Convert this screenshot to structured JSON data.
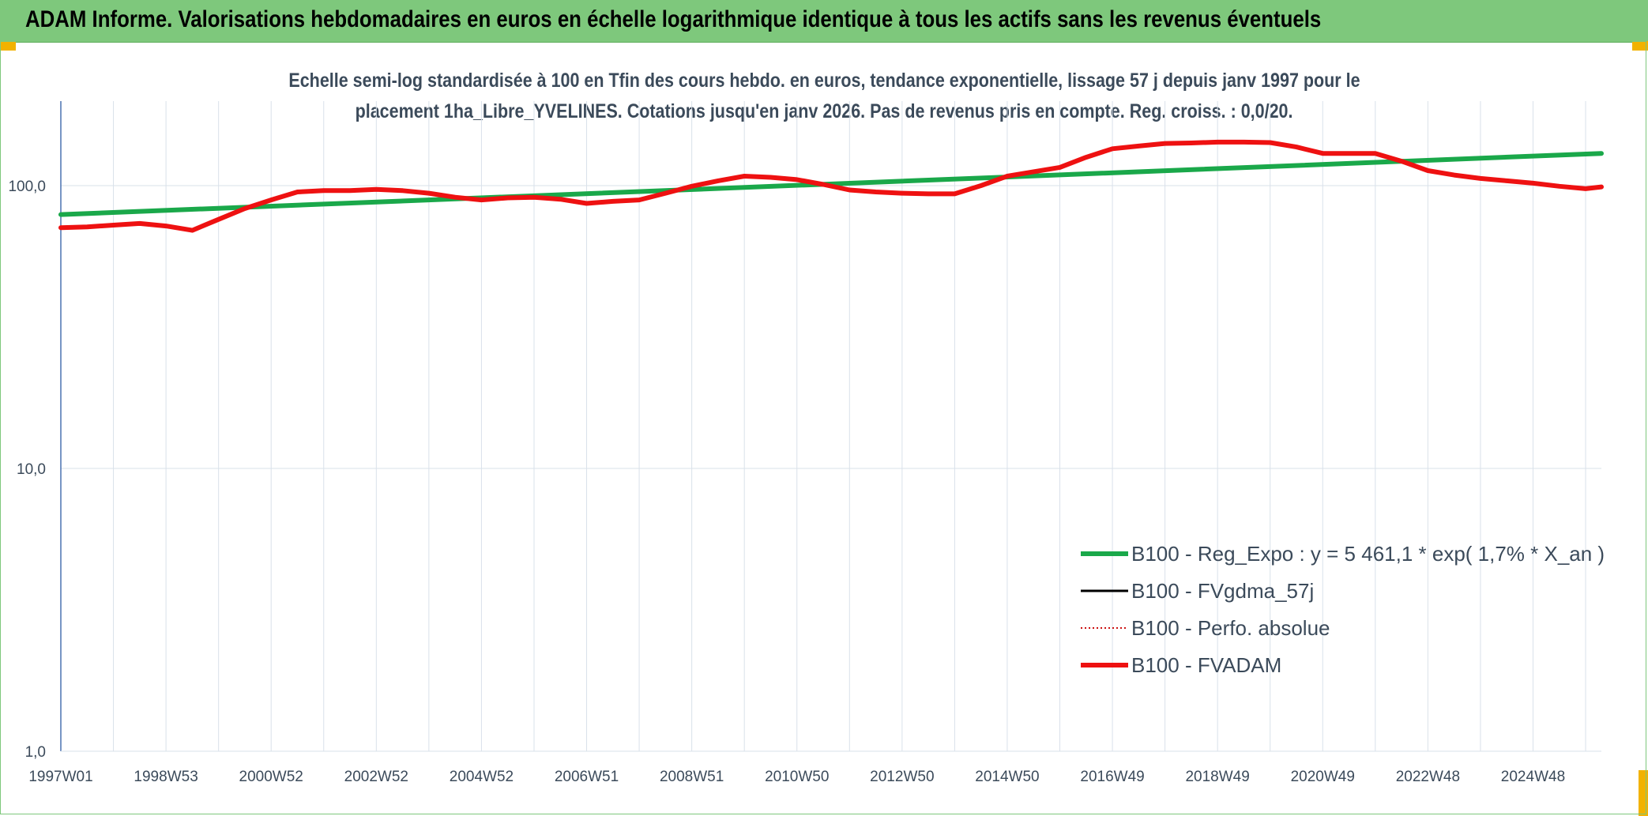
{
  "header": {
    "title": "ADAM Informe. Valorisations hebdomadaires en euros en échelle logarithmique identique à tous les actifs sans les revenus éventuels"
  },
  "colors": {
    "banner": "#7ec87c",
    "trend": "#1aa84a",
    "fvadam": "#ee1111",
    "fvgdma": "#000000",
    "perfo": "#cc1111"
  },
  "chart_data": {
    "type": "line",
    "title_lines": [
      "Echelle semi-log standardisée à 100 en Tfin des cours hebdo. en euros, tendance exponentielle, lissage 57 j depuis janv 1997 pour le",
      "placement 1ha_Libre_YVELINES. Cotations jusqu'en janv 2026. Pas de revenus pris en compte. Reg. croiss. : 0,0/20."
    ],
    "y_scale": "log",
    "ylim": [
      1,
      190
    ],
    "y_ticks": [
      {
        "value": 1,
        "label": "1,0"
      },
      {
        "value": 10,
        "label": "10,0"
      },
      {
        "value": 100,
        "label": "100,0"
      }
    ],
    "xlim": [
      1997.0,
      2026.3
    ],
    "x_ticks": [
      {
        "value": 1997.0,
        "label": "1997W01"
      },
      {
        "value": 1999.0,
        "label": "1998W53"
      },
      {
        "value": 2001.0,
        "label": "2000W52"
      },
      {
        "value": 2003.0,
        "label": "2002W52"
      },
      {
        "value": 2005.0,
        "label": "2004W52"
      },
      {
        "value": 2007.0,
        "label": "2006W51"
      },
      {
        "value": 2009.0,
        "label": "2008W51"
      },
      {
        "value": 2011.0,
        "label": "2010W50"
      },
      {
        "value": 2013.0,
        "label": "2012W50"
      },
      {
        "value": 2015.0,
        "label": "2014W50"
      },
      {
        "value": 2017.0,
        "label": "2016W49"
      },
      {
        "value": 2019.0,
        "label": "2018W49"
      },
      {
        "value": 2021.0,
        "label": "2020W49"
      },
      {
        "value": 2023.0,
        "label": "2022W48"
      },
      {
        "value": 2025.0,
        "label": "2024W48"
      }
    ],
    "grid": true,
    "legend_position": "bottom-right",
    "series": [
      {
        "name": "B100 - Reg_Expo : y = 5 461,1 * exp( 1,7% *  X_an )",
        "key": "trend",
        "style": "solid-thick",
        "x": [
          1997.0,
          2026.3
        ],
        "y": [
          79,
          130
        ]
      },
      {
        "name": "B100 - FVgdma_57j",
        "key": "fvgdma",
        "style": "solid-thin",
        "x": [],
        "y": []
      },
      {
        "name": "B100 - Perfo. absolue",
        "key": "perfo",
        "style": "dotted",
        "x": [],
        "y": []
      },
      {
        "name": "B100 - FVADAM",
        "key": "fvadam",
        "style": "solid-thick",
        "x": [
          1997.0,
          1997.5,
          1998.0,
          1998.5,
          1999.0,
          1999.5,
          2000.0,
          2000.5,
          2001.0,
          2001.5,
          2002.0,
          2002.5,
          2003.0,
          2003.5,
          2004.0,
          2004.5,
          2005.0,
          2005.5,
          2006.0,
          2006.5,
          2007.0,
          2007.5,
          2008.0,
          2008.5,
          2009.0,
          2009.5,
          2010.0,
          2010.5,
          2011.0,
          2011.5,
          2012.0,
          2012.5,
          2013.0,
          2013.5,
          2014.0,
          2014.5,
          2015.0,
          2015.5,
          2016.0,
          2016.5,
          2017.0,
          2017.5,
          2018.0,
          2018.5,
          2019.0,
          2019.5,
          2020.0,
          2020.5,
          2021.0,
          2021.5,
          2022.0,
          2022.5,
          2023.0,
          2023.5,
          2024.0,
          2024.5,
          2025.0,
          2025.5,
          2026.0,
          2026.3
        ],
        "y": [
          71,
          71.5,
          72.5,
          73.5,
          72,
          69.5,
          76,
          83,
          89,
          95,
          96,
          96,
          97,
          96,
          94,
          91,
          89,
          90.5,
          91,
          89.5,
          86.5,
          88,
          89,
          94,
          99.5,
          104,
          108,
          107,
          105,
          101,
          96.5,
          95,
          94,
          93.5,
          93.5,
          100,
          108,
          112,
          116,
          126,
          135,
          138,
          141,
          141.5,
          142.5,
          142.5,
          142,
          137,
          130,
          130,
          130,
          122,
          113,
          109,
          106,
          104,
          102,
          99.5,
          97.5,
          99
        ]
      }
    ]
  }
}
